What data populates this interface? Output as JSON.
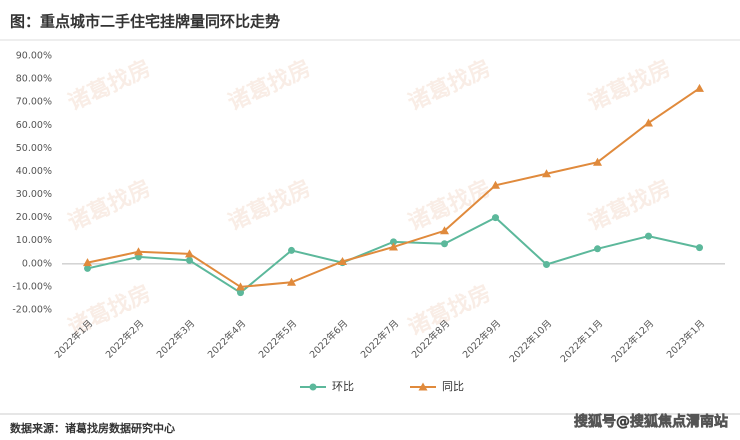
{
  "chart_data": {
    "type": "line",
    "title": "图：重点城市二手住宅挂牌量同环比走势",
    "source": "数据来源：诸葛找房数据研究中心",
    "watermark": "诸葛找房",
    "credit": "搜狐号@搜狐焦点渭南站",
    "categories": [
      "2022年1月",
      "2022年2月",
      "2022年3月",
      "2022年4月",
      "2022年5月",
      "2022年6月",
      "2022年7月",
      "2022年8月",
      "2022年9月",
      "2022年10月",
      "2022年11月",
      "2022年12月",
      "2023年1月"
    ],
    "series": [
      {
        "name": "环比",
        "color": "#5cb89b",
        "marker": "circle",
        "values": [
          -2,
          3,
          1.5,
          -12.5,
          5.8,
          0.5,
          9.5,
          8.7,
          20,
          -0.3,
          6.5,
          12,
          7
        ]
      },
      {
        "name": "同比",
        "color": "#e08a3c",
        "marker": "triangle",
        "values": [
          0.5,
          5.2,
          4.3,
          -10,
          -8,
          1,
          7.3,
          14.3,
          34,
          39,
          44,
          61,
          76
        ]
      }
    ],
    "ylim": [
      -20,
      90
    ],
    "yticks": [
      {
        "value": -20,
        "label": "-20.00%"
      },
      {
        "value": -10,
        "label": "-10.00%"
      },
      {
        "value": 0,
        "label": "0.00%"
      },
      {
        "value": 10,
        "label": "10.00%"
      },
      {
        "value": 20,
        "label": "20.00%"
      },
      {
        "value": 30,
        "label": "30.00%"
      },
      {
        "value": 40,
        "label": "40.00%"
      },
      {
        "value": 50,
        "label": "50.00%"
      },
      {
        "value": 60,
        "label": "60.00%"
      },
      {
        "value": 70,
        "label": "70.00%"
      },
      {
        "value": 80,
        "label": "80.00%"
      },
      {
        "value": 90,
        "label": "90.00%"
      }
    ],
    "grid": false
  }
}
